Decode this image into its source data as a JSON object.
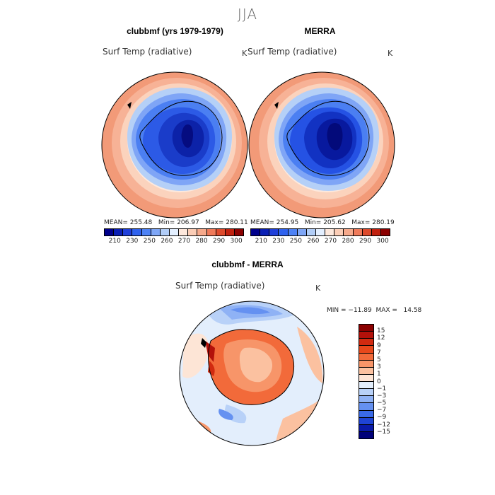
{
  "figure": {
    "season": "JJA"
  },
  "panels": [
    {
      "title": "clubbmf (yrs 1979-1979)",
      "variable": "Surf Temp (radiative)",
      "units": "K",
      "stats": "MEAN= 255.48   Min= 206.97   Max= 280.11"
    },
    {
      "title": "MERRA",
      "variable": "Surf Temp (radiative)",
      "units": "K",
      "stats": "MEAN= 254.95   Min= 205.62   Max= 280.19"
    }
  ],
  "diff_panel": {
    "title": "clubbmf - MERRA",
    "variable": "Surf Temp (radiative)",
    "units": "K",
    "stats": "MIN = −11.89  MAX =   14.58"
  },
  "abs_colorbar": {
    "colors": [
      "#00008b",
      "#0a1fb4",
      "#1f3fd9",
      "#2f62ee",
      "#4d82f5",
      "#7ea6f6",
      "#b1cdf7",
      "#e3efff",
      "#fde8dc",
      "#fbcdb6",
      "#f6a98b",
      "#ef7a5a",
      "#dd4a2c",
      "#c1210f",
      "#8b0000"
    ],
    "labels": [
      "210",
      "230",
      "250",
      "260",
      "270",
      "280",
      "290",
      "300"
    ]
  },
  "diff_colorbar": {
    "colors": [
      "#8b0000",
      "#b3110a",
      "#d12a10",
      "#e8481b",
      "#f26a3a",
      "#f79569",
      "#fbc1a0",
      "#fde5d6",
      "#e3eefc",
      "#b8d1f8",
      "#8fb2f5",
      "#6591f1",
      "#3a6ae8",
      "#1f44d4",
      "#0a1aa8",
      "#00007a"
    ],
    "labels": [
      "15",
      "12",
      "9",
      "7",
      "5",
      "3",
      "1",
      "0",
      "−1",
      "−3",
      "−5",
      "−7",
      "−9",
      "−12",
      "−15"
    ]
  }
}
